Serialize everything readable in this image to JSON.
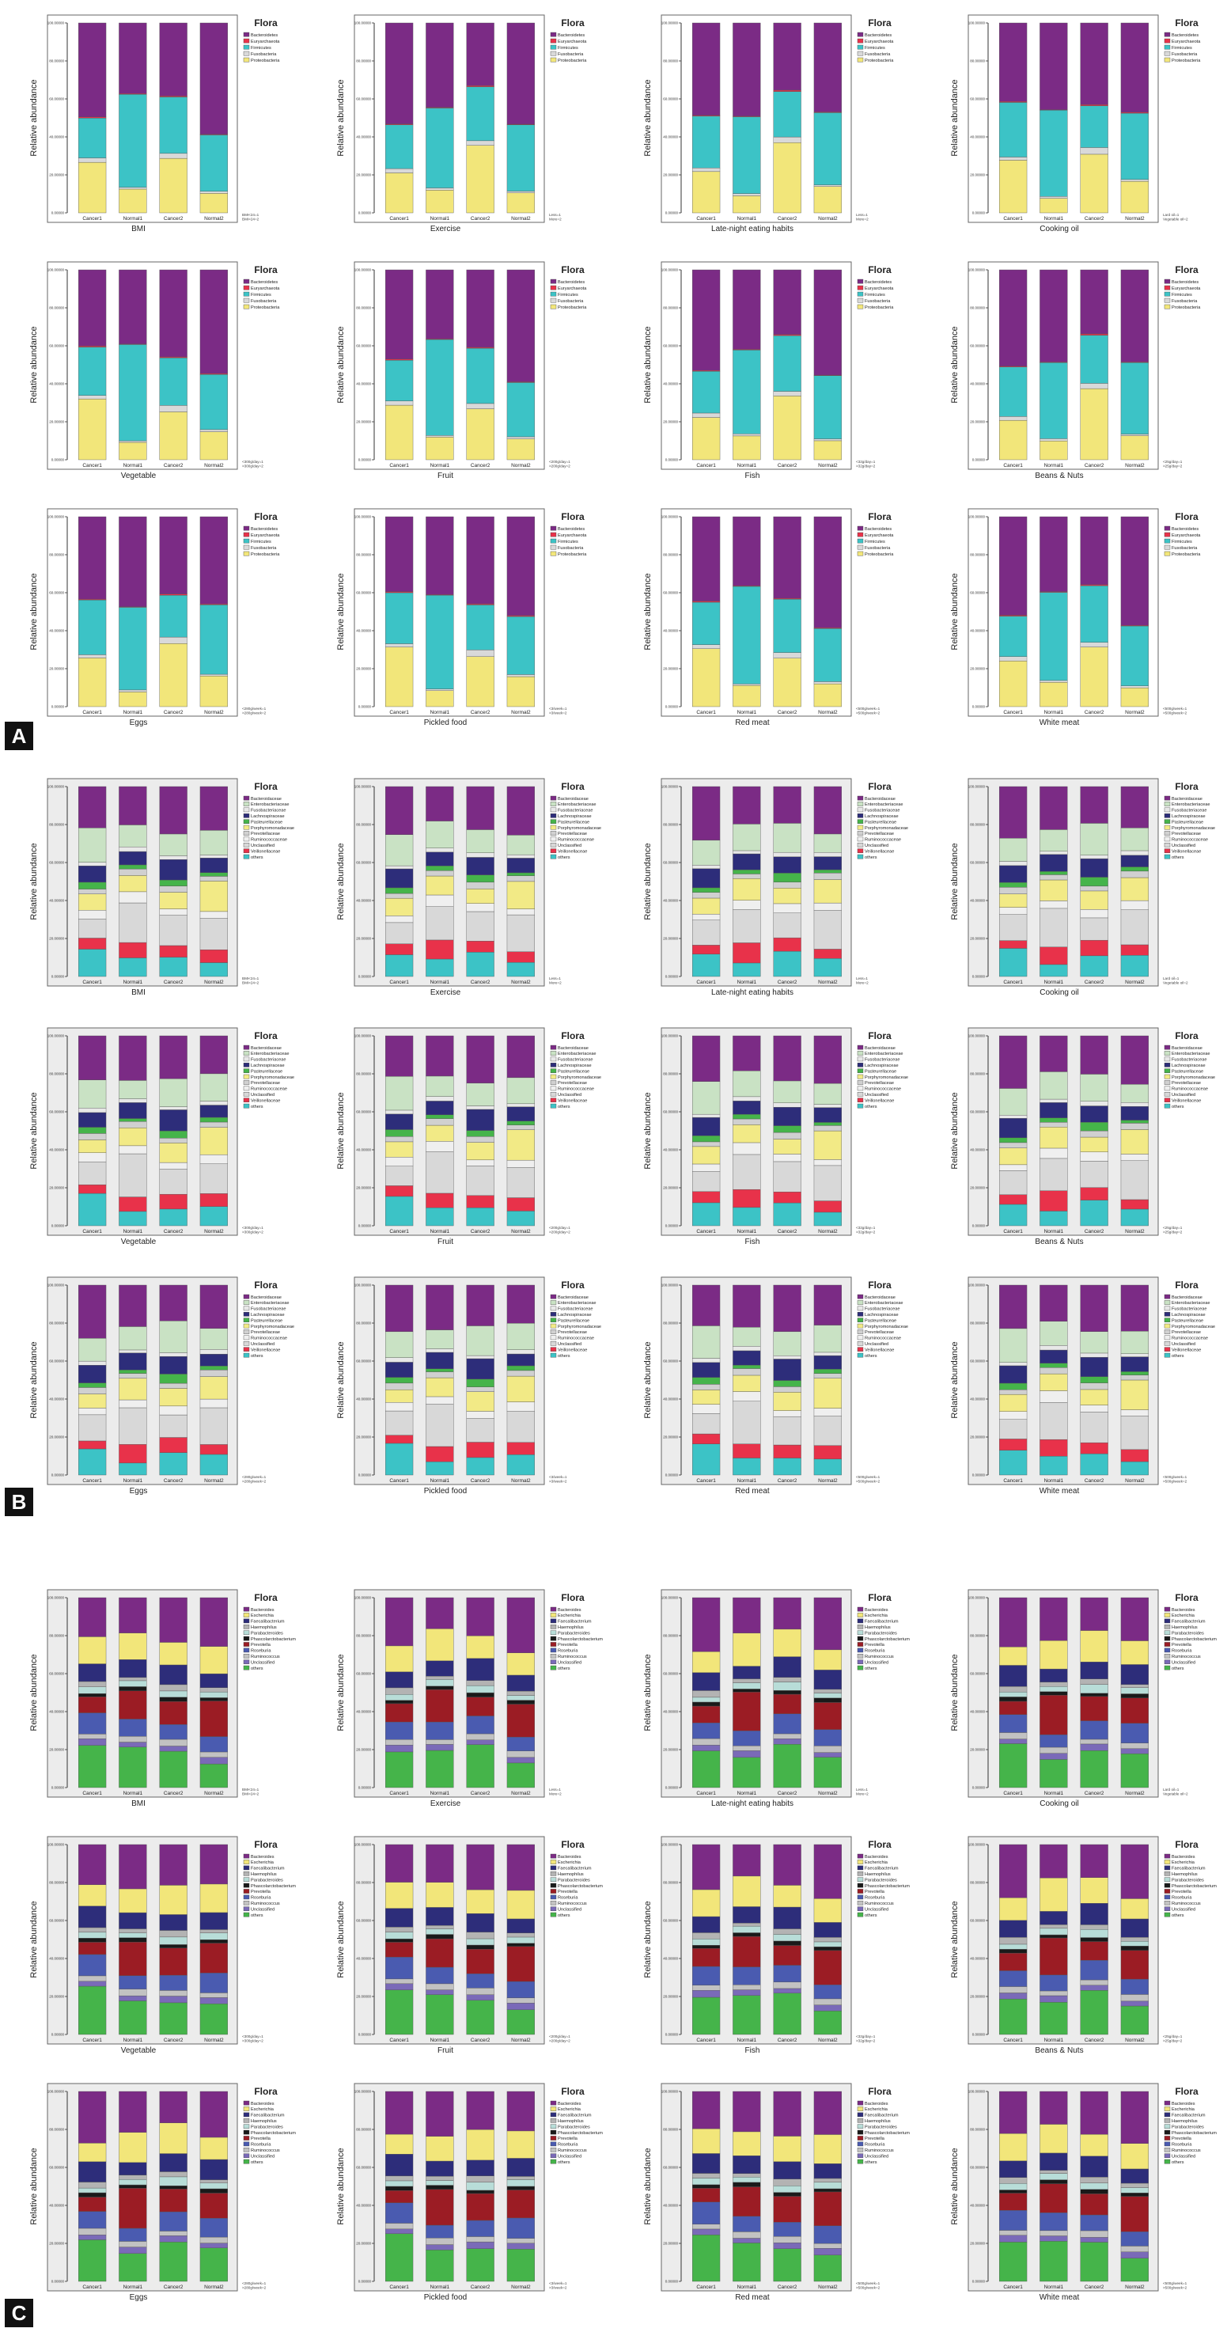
{
  "figure": {
    "panel_letters": [
      "A",
      "B",
      "C"
    ],
    "flora_legend_title": "Flora",
    "y_axis_label": "Relative abundance",
    "x_categories": [
      "Cancer1",
      "Normal1",
      "Cancer2",
      "Normal2"
    ],
    "y_tick_labels": [
      "0.00000",
      "20.00000",
      "40.00000",
      "60.00000",
      "80.00000",
      "100.00000"
    ],
    "factors": [
      "BMI",
      "Exercise",
      "Late-night eating habits",
      "Cooking oil",
      "Vegetable",
      "Fruit",
      "Fish",
      "Beans & Nuts",
      "Eggs",
      "Pickled food",
      "Red meat",
      "White meat"
    ],
    "footnotes": [
      [
        "BMI<24=1",
        "BMI>24=2"
      ],
      [
        "Less=1",
        "More=2"
      ],
      [
        "Less=1",
        "More=2"
      ],
      [
        "Lard oil=1",
        "Vegetable oil=2"
      ],
      [
        "<300g/day=1",
        ">300g/day=2"
      ],
      [
        "<200g/day=1",
        ">200g/day=2"
      ],
      [
        "<32g/day=1",
        ">32g/day=2"
      ],
      [
        "<25g/day=1",
        ">25g/day=2"
      ],
      [
        "<280g/week=1",
        ">280g/week=2"
      ],
      [
        "<3/week=1",
        ">3/week=2"
      ],
      [
        "<500g/week=1",
        ">500g/week=2"
      ],
      [
        "<500g/week=1",
        ">500g/week=2"
      ]
    ]
  },
  "colors": {
    "phylum": [
      "#7b2b85",
      "#e8324a",
      "#3cc3c6",
      "#d9d9d9",
      "#f2e67a"
    ],
    "family": [
      "#7b2b85",
      "#c9e2c4",
      "#e8e8e8",
      "#2d2d7a",
      "#45b44a",
      "#f2ea86",
      "#d0d0d0",
      "#efefef",
      "#d8d8d8",
      "#e8324a",
      "#3cc3c6"
    ],
    "genus": [
      "#7b2b85",
      "#f2e67a",
      "#2d2d7a",
      "#b3b3b3",
      "#b8ddd8",
      "#1a1a1a",
      "#9b1c24",
      "#4a5bb0",
      "#c2c2c2",
      "#7a6ab8",
      "#45b44a"
    ]
  },
  "legends": {
    "A": [
      "Bacteroidetes",
      "Euryarchaeota",
      "Firmicutes",
      "Fusobacteria",
      "Proteobacteria"
    ],
    "B": [
      "Bacteroidaceae",
      "Enterobacteriaceae",
      "Fusobacteriaceae",
      "Lachnospiraceae",
      "Pasteurellaceae",
      "Porphyromonadaceae",
      "Prevotellaceae",
      "Ruminococcaceae",
      "Unclassified",
      "Veillonellaceae",
      "others"
    ],
    "C": [
      "Bacteroides",
      "Escherichia",
      "Faecalibacterium",
      "Haemophilus",
      "Parabacteroides",
      "Phascolarctobacterium",
      "Prevotella",
      "Roseburia",
      "Ruminococcus",
      "Unclassified",
      "others"
    ]
  },
  "chart_data": [
    {
      "panel": "A",
      "type": "bar",
      "stacked": true,
      "ylim": [
        0,
        100
      ],
      "categories": [
        "Cancer1",
        "Normal1",
        "Cancer2",
        "Normal2"
      ],
      "series": [
        {
          "name": "Proteobacteria",
          "color": "#f2e67a",
          "values": [
            26,
            10,
            31,
            13
          ]
        },
        {
          "name": "Fusobacteria",
          "color": "#d9d9d9",
          "values": [
            2,
            1,
            3,
            1
          ]
        },
        {
          "name": "Firmicutes",
          "color": "#3cc3c6",
          "values": [
            25,
            46,
            26,
            33
          ]
        },
        {
          "name": "Euryarchaeota",
          "color": "#e8324a",
          "values": [
            0.5,
            0.3,
            0.6,
            0.4
          ]
        },
        {
          "name": "Bacteroidetes",
          "color": "#7b2b85",
          "values": [
            46.5,
            42.7,
            39.4,
            52.6
          ]
        }
      ],
      "note": "Approximate values; each of the 12 sub-charts in row A shows a similar composition."
    },
    {
      "panel": "B",
      "type": "bar",
      "stacked": true,
      "ylim": [
        0,
        100
      ],
      "categories": [
        "Cancer1",
        "Normal1",
        "Cancer2",
        "Normal2"
      ],
      "series": [
        {
          "name": "others",
          "color": "#3cc3c6",
          "values": [
            14,
            8,
            11,
            9
          ]
        },
        {
          "name": "Veillonellaceae",
          "color": "#e8324a",
          "values": [
            5,
            9,
            7,
            6
          ]
        },
        {
          "name": "Unclassified",
          "color": "#d8d8d8",
          "values": [
            12,
            20,
            14,
            18
          ]
        },
        {
          "name": "Ruminococcaceae",
          "color": "#efefef",
          "values": [
            4,
            5,
            4,
            4
          ]
        },
        {
          "name": "Prevotellaceae",
          "color": "#f2ea86",
          "values": [
            8,
            10,
            9,
            14
          ]
        },
        {
          "name": "Porphyromonadaceae",
          "color": "#d0d0d0",
          "values": [
            3,
            3,
            3,
            3
          ]
        },
        {
          "name": "Pasteurellaceae",
          "color": "#45b44a",
          "values": [
            3,
            2,
            4,
            2
          ]
        },
        {
          "name": "Lachnospiraceae",
          "color": "#2d2d7a",
          "values": [
            9,
            8,
            10,
            7
          ]
        },
        {
          "name": "Fusobacteriaceae",
          "color": "#e8e8e8",
          "values": [
            2,
            2,
            2,
            2
          ]
        },
        {
          "name": "Enterobacteriaceae",
          "color": "#c9e2c4",
          "values": [
            15,
            12,
            14,
            12
          ]
        },
        {
          "name": "Bacteroidaceae",
          "color": "#7b2b85",
          "values": [
            25,
            21,
            22,
            23
          ]
        }
      ]
    },
    {
      "panel": "C",
      "type": "bar",
      "stacked": true,
      "ylim": [
        0,
        100
      ],
      "categories": [
        "Cancer1",
        "Normal1",
        "Cancer2",
        "Normal2"
      ],
      "series": [
        {
          "name": "others",
          "color": "#45b44a",
          "values": [
            22,
            18,
            20,
            15
          ]
        },
        {
          "name": "Unclassified",
          "color": "#7a6ab8",
          "values": [
            3,
            3,
            3,
            3
          ]
        },
        {
          "name": "Ruminococcus",
          "color": "#c2c2c2",
          "values": [
            3,
            3,
            3,
            3
          ]
        },
        {
          "name": "Roseburia",
          "color": "#4a5bb0",
          "values": [
            10,
            8,
            9,
            9
          ]
        },
        {
          "name": "Prevotella",
          "color": "#9b1c24",
          "values": [
            8,
            18,
            12,
            16
          ]
        },
        {
          "name": "Phascolarctobacterium",
          "color": "#1a1a1a",
          "values": [
            2,
            2,
            2,
            2
          ]
        },
        {
          "name": "Parabacteroides",
          "color": "#b8ddd8",
          "values": [
            3,
            3,
            4,
            3
          ]
        },
        {
          "name": "Haemophilus",
          "color": "#b3b3b3",
          "values": [
            3,
            2,
            3,
            2
          ]
        },
        {
          "name": "Faecalibacterium",
          "color": "#2d2d7a",
          "values": [
            10,
            8,
            10,
            9
          ]
        },
        {
          "name": "Escherichia",
          "color": "#f2e67a",
          "values": [
            12,
            15,
            14,
            13
          ]
        },
        {
          "name": "Bacteroides",
          "color": "#7b2b85",
          "values": [
            24,
            20,
            20,
            25
          ]
        }
      ]
    }
  ]
}
